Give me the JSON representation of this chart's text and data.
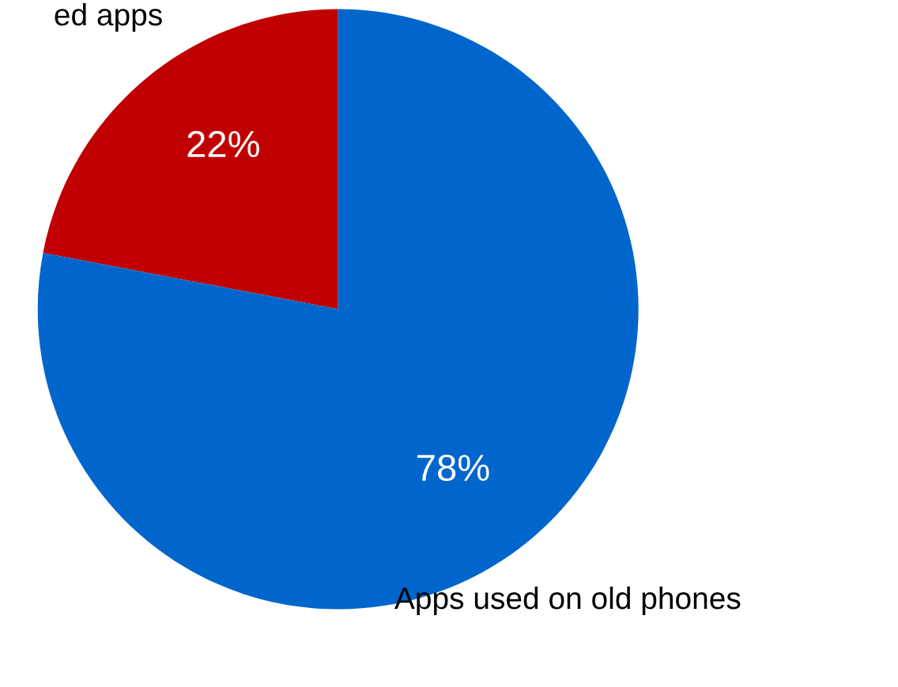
{
  "chart_data": {
    "type": "pie",
    "categories": [
      "ed apps",
      "Apps used on old phones"
    ],
    "values": [
      22,
      78
    ],
    "colors": [
      "#c00000",
      "#0066cc"
    ],
    "value_labels": [
      "22%",
      "78%"
    ]
  }
}
